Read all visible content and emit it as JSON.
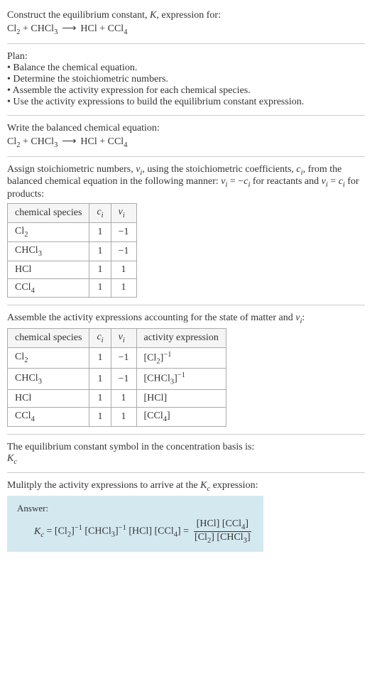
{
  "header": {
    "line1": "Construct the equilibrium constant, <i>K</i>, expression for:",
    "equation": "Cl<sub>2</sub> + CHCl<sub>3</sub><span class=\"arrow\">⟶</span>HCl + CCl<sub>4</sub>"
  },
  "plan": {
    "title": "Plan:",
    "bullets": [
      "• Balance the chemical equation.",
      "• Determine the stoichiometric numbers.",
      "• Assemble the activity expression for each chemical species.",
      "• Use the activity expressions to build the equilibrium constant expression."
    ]
  },
  "balanced": {
    "title": "Write the balanced chemical equation:",
    "equation": "Cl<sub>2</sub> + CHCl<sub>3</sub><span class=\"arrow\">⟶</span>HCl + CCl<sub>4</sub>"
  },
  "stoich": {
    "text": "Assign stoichiometric numbers, <i>ν<sub>i</sub></i>, using the stoichiometric coefficients, <i>c<sub>i</sub></i>, from the balanced chemical equation in the following manner: <i>ν<sub>i</sub></i> = −<i>c<sub>i</sub></i> for reactants and <i>ν<sub>i</sub></i> = <i>c<sub>i</sub></i> for products:",
    "headers": [
      "chemical species",
      "<i>c<sub>i</sub></i>",
      "<i>ν<sub>i</sub></i>"
    ],
    "rows": [
      [
        "Cl<sub>2</sub>",
        "1",
        "−1"
      ],
      [
        "CHCl<sub>3</sub>",
        "1",
        "−1"
      ],
      [
        "HCl",
        "1",
        "1"
      ],
      [
        "CCl<sub>4</sub>",
        "1",
        "1"
      ]
    ]
  },
  "activity": {
    "text": "Assemble the activity expressions accounting for the state of matter and <i>ν<sub>i</sub></i>:",
    "headers": [
      "chemical species",
      "<i>c<sub>i</sub></i>",
      "<i>ν<sub>i</sub></i>",
      "activity expression"
    ],
    "rows": [
      [
        "Cl<sub>2</sub>",
        "1",
        "−1",
        "[Cl<sub>2</sub>]<sup>−1</sup>"
      ],
      [
        "CHCl<sub>3</sub>",
        "1",
        "−1",
        "[CHCl<sub>3</sub>]<sup>−1</sup>"
      ],
      [
        "HCl",
        "1",
        "1",
        "[HCl]"
      ],
      [
        "CCl<sub>4</sub>",
        "1",
        "1",
        "[CCl<sub>4</sub>]"
      ]
    ]
  },
  "symbol": {
    "line1": "The equilibrium constant symbol in the concentration basis is:",
    "line2": "<i>K<sub>c</sub></i>"
  },
  "multiply": {
    "text": "Mulitply the activity expressions to arrive at the <i>K<sub>c</sub></i> expression:"
  },
  "answer": {
    "label": "Answer:",
    "lhs": "<i>K<sub>c</sub></i> = [Cl<sub>2</sub>]<sup>−1</sup> [CHCl<sub>3</sub>]<sup>−1</sup> [HCl] [CCl<sub>4</sub>] =",
    "num": "[HCl] [CCl<sub>4</sub>]",
    "den": "[Cl<sub>2</sub>] [CHCl<sub>3</sub>]"
  },
  "colors": {
    "answer_bg": "#d4e8f0",
    "border": "#aaa",
    "hr": "#ccc"
  }
}
